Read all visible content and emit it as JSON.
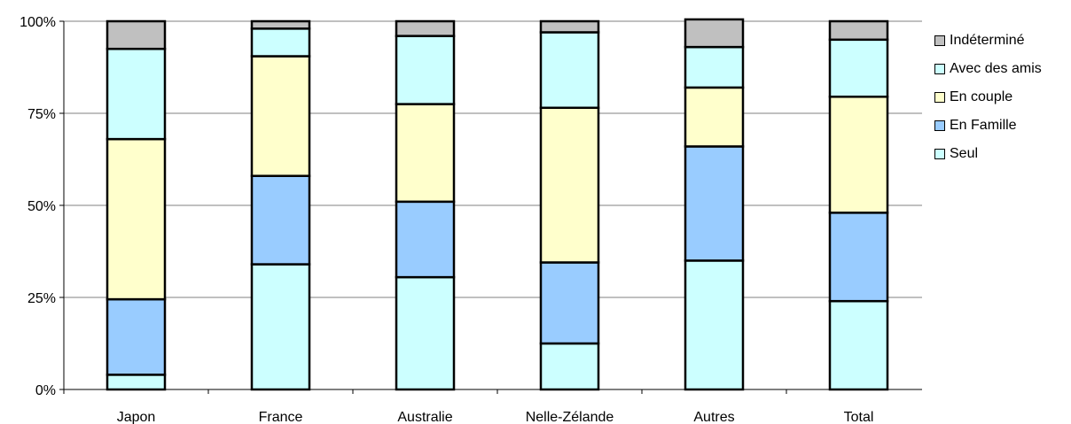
{
  "chart_data": {
    "type": "bar",
    "stacked": true,
    "percent": true,
    "categories": [
      "Japon",
      "France",
      "Australie",
      "Nelle-Zélande",
      "Autres",
      "Total"
    ],
    "series": [
      {
        "name": "Seul",
        "color": "#CCFFFF",
        "values": [
          4,
          34,
          30.5,
          12.5,
          35,
          24
        ]
      },
      {
        "name": "En Famille",
        "color": "#99CCFF",
        "values": [
          20.5,
          24,
          20.5,
          22,
          31,
          24
        ]
      },
      {
        "name": "En couple",
        "color": "#FFFFCC",
        "values": [
          43.5,
          32.5,
          26.5,
          42,
          16,
          31.5
        ]
      },
      {
        "name": "Avec des amis",
        "color": "#CCFFFF",
        "values": [
          24.5,
          7.5,
          18.5,
          20.5,
          11,
          15.5
        ]
      },
      {
        "name": "Indéterminé",
        "color": "#C0C0C0",
        "values": [
          7.5,
          2,
          4,
          3,
          7.5,
          5
        ]
      }
    ],
    "y_ticks": [
      "0%",
      "25%",
      "50%",
      "75%",
      "100%"
    ],
    "ylim": [
      0,
      100
    ],
    "grid": true,
    "legend_position": "right",
    "legend_order": [
      "Indéterminé",
      "Avec des amis",
      "En couple",
      "En Famille",
      "Seul"
    ]
  }
}
